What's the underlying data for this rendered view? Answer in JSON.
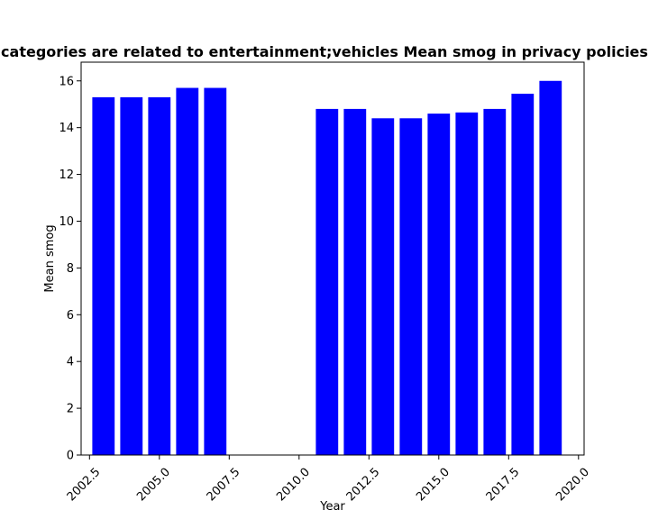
{
  "chart_data": {
    "type": "bar",
    "title": "categories are related to entertainment;vehicles Mean smog in privacy policies",
    "xlabel": "Year",
    "ylabel": "Mean smog",
    "x": [
      2003,
      2004,
      2005,
      2006,
      2007,
      2011,
      2012,
      2013,
      2014,
      2015,
      2016,
      2017,
      2018,
      2019
    ],
    "values": [
      15.3,
      15.3,
      15.3,
      15.7,
      15.7,
      14.8,
      14.8,
      14.4,
      14.4,
      14.6,
      14.65,
      14.8,
      15.45,
      16.0
    ],
    "xlim": [
      2002.2,
      2020.2
    ],
    "ylim": [
      0,
      16.8
    ],
    "xticks": [
      2002.5,
      2005.0,
      2007.5,
      2010.0,
      2012.5,
      2015.0,
      2017.5,
      2020.0
    ],
    "xtick_labels": [
      "2002.5",
      "2005.0",
      "2007.5",
      "2010.0",
      "2012.5",
      "2015.0",
      "2017.5",
      "2020.0"
    ],
    "yticks": [
      0,
      2,
      4,
      6,
      8,
      10,
      12,
      14,
      16
    ],
    "ytick_labels": [
      "0",
      "2",
      "4",
      "6",
      "8",
      "10",
      "12",
      "14",
      "16"
    ],
    "bar_color": "#0000ff",
    "grid": false,
    "legend": "none"
  }
}
